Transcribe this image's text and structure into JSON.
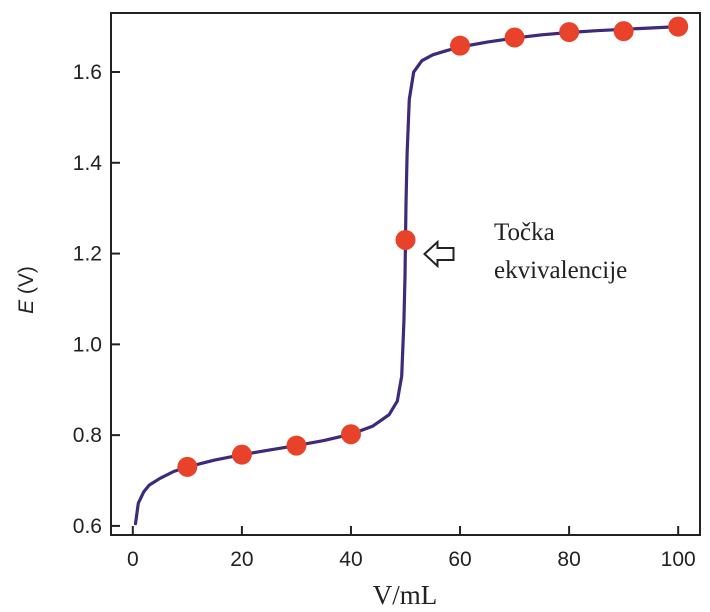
{
  "chart_data": {
    "type": "line",
    "title": "",
    "xlabel": "V/mL",
    "ylabel_symbol": "E",
    "ylabel_unit": " (V)",
    "xlim": [
      -4,
      104
    ],
    "ylim": [
      0.58,
      1.73
    ],
    "x_ticks": [
      0,
      20,
      40,
      60,
      80,
      100
    ],
    "x_tick_labels": [
      "0",
      "20",
      "40",
      "60",
      "80",
      "100"
    ],
    "y_ticks": [
      0.6,
      0.8,
      1.0,
      1.2,
      1.4,
      1.6
    ],
    "y_tick_labels": [
      "0.6",
      "0.8",
      "1.0",
      "1.2",
      "1.4",
      "1.6"
    ],
    "grid": false,
    "legend": "none",
    "curve_color": "#3d2a7a",
    "point_color": "#e8432a",
    "curve": {
      "x": [
        0.5,
        1,
        2,
        3,
        5,
        7.5,
        10,
        15,
        20,
        25,
        30,
        35,
        40,
        44,
        47,
        48.5,
        49.3,
        49.7,
        49.9,
        50,
        50.1,
        50.3,
        50.7,
        51.5,
        53,
        55,
        57.5,
        60,
        65,
        70,
        75,
        80,
        85,
        90,
        95,
        100
      ],
      "y": [
        0.605,
        0.65,
        0.675,
        0.69,
        0.705,
        0.72,
        0.73,
        0.745,
        0.757,
        0.767,
        0.777,
        0.788,
        0.802,
        0.82,
        0.845,
        0.875,
        0.93,
        1.05,
        1.15,
        1.23,
        1.31,
        1.42,
        1.54,
        1.6,
        1.625,
        1.638,
        1.647,
        1.655,
        1.666,
        1.675,
        1.682,
        1.687,
        1.691,
        1.694,
        1.697,
        1.7
      ]
    },
    "points": {
      "x": [
        10,
        20,
        30,
        40,
        50,
        60,
        70,
        80,
        90,
        100
      ],
      "y": [
        0.73,
        0.757,
        0.777,
        0.802,
        1.23,
        1.658,
        1.676,
        1.688,
        1.69,
        1.7
      ]
    },
    "annotation": {
      "line1": "Točka",
      "line2": "ekvivalencije",
      "target_x": 50,
      "target_y": 1.23
    }
  }
}
